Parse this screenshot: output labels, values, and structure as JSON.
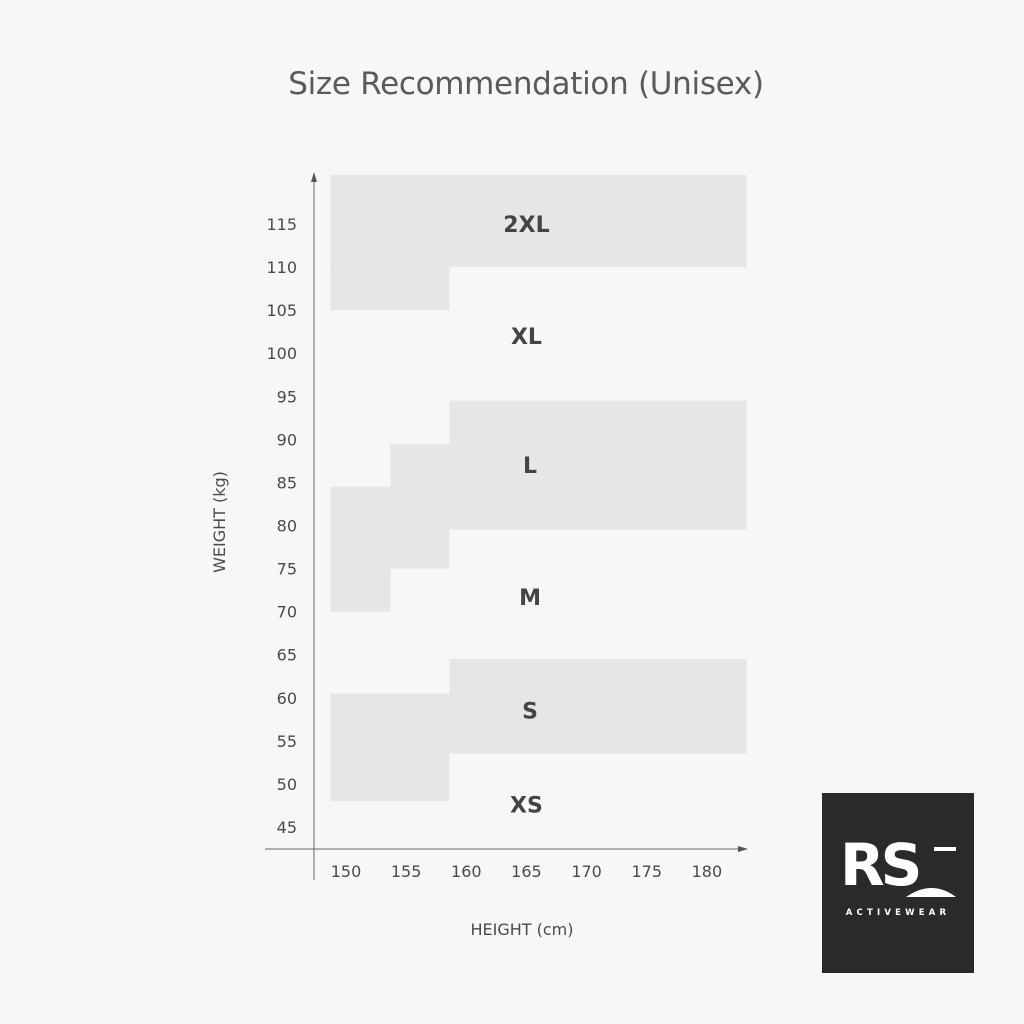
{
  "chart_data": {
    "type": "heatmap",
    "title": "Size Recommendation (Unisex)",
    "xlabel": "HEIGHT (cm)",
    "ylabel": "WEIGHT (kg)",
    "xlim": [
      147,
      184
    ],
    "ylim": [
      40,
      122
    ],
    "x_ticks": [
      "150",
      "155",
      "160",
      "165",
      "170",
      "175",
      "180"
    ],
    "y_ticks": [
      "45",
      "50",
      "55",
      "60",
      "65",
      "70",
      "75",
      "80",
      "85",
      "90",
      "95",
      "100",
      "105",
      "110",
      "115"
    ],
    "region_color": "#e6e6e6",
    "background": "#f7f7f7",
    "sizes": [
      {
        "label": "2XL",
        "shaded": true,
        "label_at": [
          165,
          115
        ],
        "blocks": [
          {
            "h": [
              148.7,
              183.3
            ],
            "w": [
              110,
              120.7
            ]
          },
          {
            "h": [
              148.7,
              158.6
            ],
            "w": [
              105,
              110
            ]
          }
        ]
      },
      {
        "label": "XL",
        "shaded": false,
        "label_at": [
          165,
          102
        ]
      },
      {
        "label": "L",
        "shaded": true,
        "label_at": [
          165.3,
          87
        ],
        "blocks": [
          {
            "h": [
              158.6,
              183.3
            ],
            "w": [
              79.5,
              94.5
            ]
          },
          {
            "h": [
              153.7,
              158.6
            ],
            "w": [
              75,
              89.5
            ]
          },
          {
            "h": [
              148.7,
              153.7
            ],
            "w": [
              70,
              84.5
            ]
          }
        ]
      },
      {
        "label": "M",
        "shaded": false,
        "label_at": [
          165.3,
          71.7
        ]
      },
      {
        "label": "S",
        "shaded": true,
        "label_at": [
          165.3,
          58.5
        ],
        "blocks": [
          {
            "h": [
              158.6,
              183.3
            ],
            "w": [
              53.5,
              64.5
            ]
          },
          {
            "h": [
              148.7,
              158.6
            ],
            "w": [
              48,
              60.5
            ]
          }
        ]
      },
      {
        "label": "XS",
        "shaded": false,
        "label_at": [
          165,
          47.6
        ]
      }
    ]
  },
  "logo": {
    "text": "RS",
    "subtext": "ACTIVEWEAR"
  }
}
